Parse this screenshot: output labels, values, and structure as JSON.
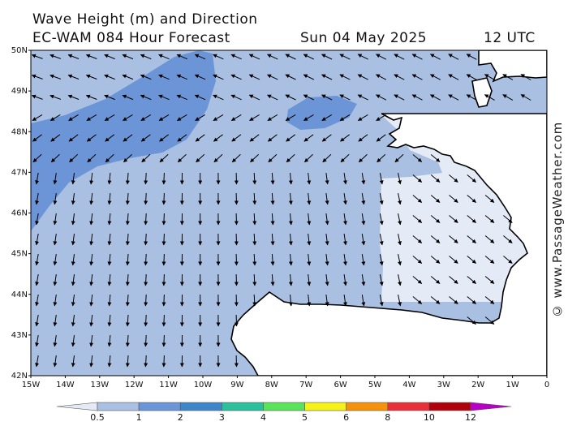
{
  "title": "Wave Height (m) and Direction",
  "subtitle": "EC-WAM 084 Hour Forecast",
  "date": "Sun 04 May 2025",
  "time": "12 UTC",
  "credit": "© www.PassageWeather.com",
  "map": {
    "lon_labels": [
      "15W",
      "14W",
      "13W",
      "12W",
      "11W",
      "10W",
      "9W",
      "8W",
      "7W",
      "6W",
      "5W",
      "4W",
      "3W",
      "2W",
      "1W",
      "0"
    ],
    "lat_labels": [
      "50N",
      "49N",
      "48N",
      "47N",
      "46N",
      "45N",
      "44N",
      "43N",
      "42N"
    ],
    "lon_range": [
      -15,
      0
    ],
    "lat_range": [
      42,
      50
    ]
  },
  "legend": {
    "labels": [
      "0.5",
      "1",
      "2",
      "3",
      "4",
      "5",
      "6",
      "8",
      "10",
      "12"
    ],
    "colors": [
      "#e4ebf6",
      "#a9c0e3",
      "#6b95d6",
      "#3f86c8",
      "#2cbf9c",
      "#59e35c",
      "#f4f218",
      "#f4920c",
      "#e8303a",
      "#b0000c",
      "#b800c8"
    ]
  },
  "colors": {
    "sea_low": "#e4ebf6",
    "sea_mid": "#a9c0e3",
    "sea_high": "#6b95d6",
    "land": "#ffffff",
    "coast": "#000000"
  }
}
